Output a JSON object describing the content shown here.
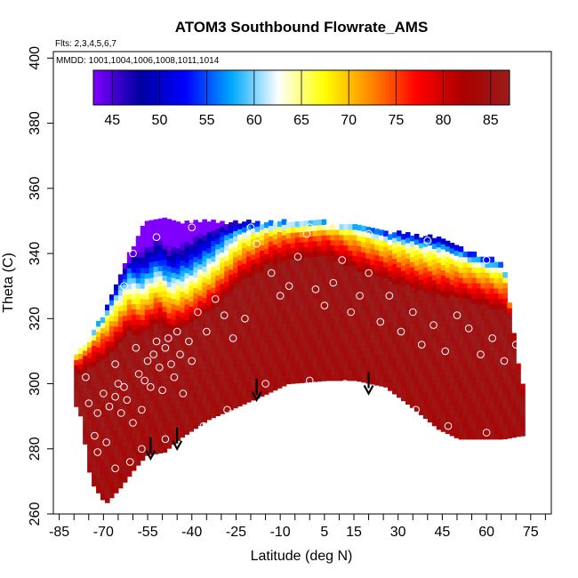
{
  "chart_data": {
    "type": "heatmap",
    "title": "ATOM3 Southbound Flowrate_AMS",
    "flights_label": "Flts: 2,3,4,5,6,7",
    "dates_label": "MMDD: 1001,1004,1006,1008,1011,1014",
    "xlabel": "Latitude (deg N)",
    "ylabel": "Theta (C)",
    "xlim": [
      -87,
      82
    ],
    "ylim": [
      260,
      402
    ],
    "x_ticks": [
      -85,
      -70,
      -55,
      -40,
      -25,
      -10,
      5,
      15,
      30,
      45,
      60,
      75
    ],
    "x_minor_ticks": [
      -80,
      -75,
      -65,
      -60,
      -50,
      -45,
      -35,
      -30,
      -20,
      -15,
      -5,
      0,
      10,
      20,
      25,
      35,
      40,
      50,
      55,
      65,
      70,
      80
    ],
    "y_ticks": [
      260,
      280,
      300,
      320,
      340,
      360,
      380,
      400
    ],
    "colorbar": {
      "range": [
        43,
        87
      ],
      "ticks": [
        45,
        50,
        55,
        60,
        65,
        70,
        75,
        80,
        85
      ],
      "colors": [
        "#7f00ff",
        "#0000a0",
        "#0000ff",
        "#00aaff",
        "#ffffff",
        "#ffff00",
        "#ff8800",
        "#ff0000",
        "#aa0000",
        "#9b1c1c"
      ]
    },
    "grid": false,
    "field_bands": [
      {
        "lat": -79,
        "bottom": 293,
        "top": 309
      },
      {
        "lat": -75,
        "bottom": 270,
        "top": 314
      },
      {
        "lat": -70,
        "bottom": 263,
        "top": 322
      },
      {
        "lat": -65,
        "bottom": 268,
        "top": 333
      },
      {
        "lat": -60,
        "bottom": 274,
        "top": 343
      },
      {
        "lat": -56,
        "bottom": 278,
        "top": 350
      },
      {
        "lat": -50,
        "bottom": 279,
        "top": 350
      },
      {
        "lat": -45,
        "bottom": 283,
        "top": 349
      },
      {
        "lat": -35,
        "bottom": 289,
        "top": 349
      },
      {
        "lat": -25,
        "bottom": 293,
        "top": 349
      },
      {
        "lat": -15,
        "bottom": 297,
        "top": 349
      },
      {
        "lat": -8,
        "bottom": 300,
        "top": 349
      },
      {
        "lat": 5,
        "bottom": 301,
        "top": 349
      },
      {
        "lat": 15,
        "bottom": 301,
        "top": 349
      },
      {
        "lat": 25,
        "bottom": 299,
        "top": 346
      },
      {
        "lat": 35,
        "bottom": 292,
        "top": 345
      },
      {
        "lat": 43,
        "bottom": 286,
        "top": 344
      },
      {
        "lat": 50,
        "bottom": 283,
        "top": 341
      },
      {
        "lat": 58,
        "bottom": 283,
        "top": 338
      },
      {
        "lat": 65,
        "bottom": 283,
        "top": 337
      },
      {
        "lat": 71,
        "bottom": 284,
        "top": 300
      }
    ],
    "transition_band": [
      {
        "lat": -79,
        "level": 305
      },
      {
        "lat": -70,
        "level": 310
      },
      {
        "lat": -62,
        "level": 318
      },
      {
        "lat": -58,
        "level": 317
      },
      {
        "lat": -52,
        "level": 321
      },
      {
        "lat": -48,
        "level": 318
      },
      {
        "lat": -42,
        "level": 320
      },
      {
        "lat": -34,
        "level": 325
      },
      {
        "lat": -24,
        "level": 334
      },
      {
        "lat": -14,
        "level": 339
      },
      {
        "lat": -4,
        "level": 341
      },
      {
        "lat": 6,
        "level": 341
      },
      {
        "lat": 16,
        "level": 337
      },
      {
        "lat": 26,
        "level": 334
      },
      {
        "lat": 36,
        "level": 331
      },
      {
        "lat": 46,
        "level": 329
      },
      {
        "lat": 56,
        "level": 327
      },
      {
        "lat": 66,
        "level": 324
      },
      {
        "lat": 71,
        "level": 322
      }
    ],
    "arrows": [
      {
        "lat": -54,
        "theta": 277
      },
      {
        "lat": -45,
        "theta": 280
      },
      {
        "lat": -18,
        "theta": 295
      },
      {
        "lat": 20,
        "theta": 297
      }
    ],
    "points": [
      [
        -76,
        302
      ],
      [
        -75,
        294
      ],
      [
        -73,
        284
      ],
      [
        -72,
        291
      ],
      [
        -70,
        297
      ],
      [
        -68,
        293
      ],
      [
        -66,
        296
      ],
      [
        -66,
        306
      ],
      [
        -65,
        300
      ],
      [
        -64,
        291
      ],
      [
        -63,
        299
      ],
      [
        -62,
        295
      ],
      [
        -61,
        276
      ],
      [
        -60,
        288
      ],
      [
        -59,
        311
      ],
      [
        -58,
        303
      ],
      [
        -57,
        292
      ],
      [
        -56,
        301
      ],
      [
        -55,
        307
      ],
      [
        -54,
        299
      ],
      [
        -53,
        309
      ],
      [
        -52,
        313
      ],
      [
        -51,
        305
      ],
      [
        -50,
        298
      ],
      [
        -49,
        311
      ],
      [
        -48,
        314
      ],
      [
        -47,
        306
      ],
      [
        -46,
        302
      ],
      [
        -45,
        316
      ],
      [
        -44,
        309
      ],
      [
        -43,
        297
      ],
      [
        -41,
        313
      ],
      [
        -40,
        307
      ],
      [
        -38,
        322
      ],
      [
        -35,
        316
      ],
      [
        -32,
        326
      ],
      [
        -29,
        321
      ],
      [
        -26,
        314
      ],
      [
        -22,
        320
      ],
      [
        -18,
        343
      ],
      [
        -13,
        334
      ],
      [
        -10,
        327
      ],
      [
        -7,
        330
      ],
      [
        -4,
        339
      ],
      [
        -1,
        346
      ],
      [
        2,
        329
      ],
      [
        5,
        324
      ],
      [
        8,
        331
      ],
      [
        11,
        338
      ],
      [
        14,
        322
      ],
      [
        17,
        327
      ],
      [
        20,
        334
      ],
      [
        24,
        319
      ],
      [
        27,
        327
      ],
      [
        31,
        316
      ],
      [
        35,
        322
      ],
      [
        38,
        312
      ],
      [
        42,
        318
      ],
      [
        46,
        310
      ],
      [
        50,
        321
      ],
      [
        54,
        317
      ],
      [
        58,
        309
      ],
      [
        62,
        314
      ],
      [
        66,
        307
      ],
      [
        70,
        312
      ],
      [
        -72,
        279
      ],
      [
        -69,
        282
      ],
      [
        -66,
        274
      ],
      [
        -57,
        280
      ],
      [
        -49,
        283
      ],
      [
        -36,
        287
      ],
      [
        -28,
        292
      ],
      [
        -15,
        300
      ],
      [
        0,
        301
      ],
      [
        12,
        300
      ],
      [
        24,
        298
      ],
      [
        36,
        292
      ],
      [
        47,
        287
      ],
      [
        60,
        285
      ],
      [
        -63,
        330
      ],
      [
        -60,
        340
      ],
      [
        -52,
        345
      ],
      [
        -40,
        348
      ],
      [
        -20,
        348
      ],
      [
        0,
        348
      ],
      [
        20,
        346
      ],
      [
        40,
        344
      ],
      [
        60,
        338
      ]
    ]
  }
}
